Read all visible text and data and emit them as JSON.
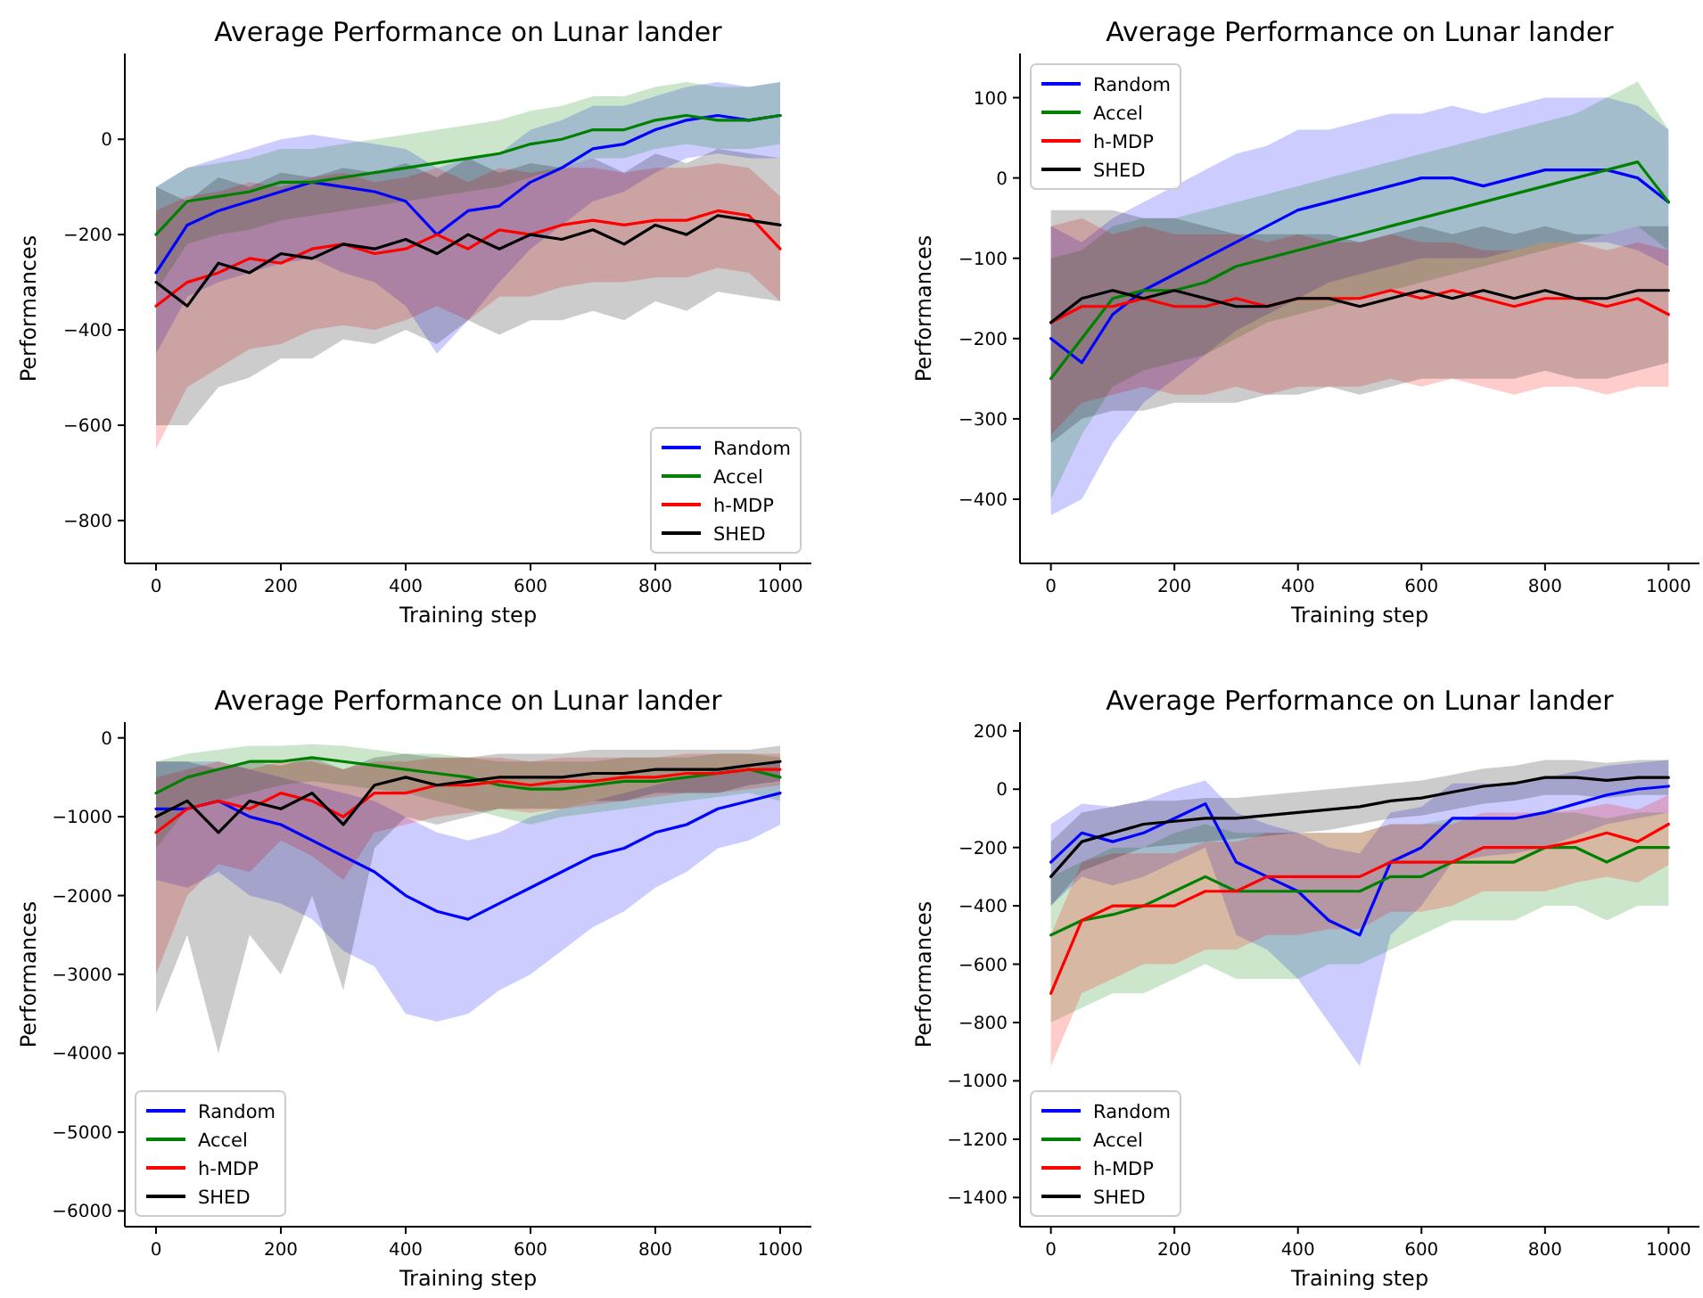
{
  "chart_data": [
    {
      "type": "line",
      "title": "Average Performance on Lunar lander",
      "xlabel": "Training step",
      "ylabel": "Performances",
      "legend": "bottom right",
      "xlim": [
        -50,
        1050
      ],
      "xticks": [
        0,
        200,
        400,
        600,
        800,
        1000
      ],
      "ylim": [
        -890,
        180
      ],
      "yticks": [
        -800,
        -600,
        -400,
        -200,
        0
      ],
      "x": [
        0,
        50,
        100,
        150,
        200,
        250,
        300,
        350,
        400,
        450,
        500,
        550,
        600,
        650,
        700,
        750,
        800,
        850,
        900,
        950,
        1000
      ],
      "series": [
        {
          "name": "Random",
          "color": "#0000ff",
          "values": [
            -280,
            -180,
            -150,
            -130,
            -110,
            -90,
            -100,
            -110,
            -130,
            -200,
            -150,
            -140,
            -90,
            -60,
            -20,
            -10,
            20,
            40,
            50,
            40,
            50
          ],
          "lower": [
            -450,
            -330,
            -300,
            -280,
            -260,
            -250,
            -280,
            -300,
            -350,
            -450,
            -380,
            -300,
            -230,
            -180,
            -130,
            -110,
            -70,
            -40,
            -30,
            -40,
            -40
          ],
          "upper": [
            -100,
            -60,
            -40,
            -20,
            0,
            10,
            0,
            -10,
            -20,
            -60,
            -40,
            -30,
            20,
            40,
            70,
            70,
            90,
            110,
            120,
            110,
            120
          ]
        },
        {
          "name": "Accel",
          "color": "#008000",
          "values": [
            -200,
            -130,
            -120,
            -110,
            -90,
            -90,
            -80,
            -70,
            -60,
            -50,
            -40,
            -30,
            -10,
            0,
            20,
            20,
            40,
            50,
            40,
            40,
            50
          ],
          "lower": [
            -320,
            -220,
            -200,
            -190,
            -170,
            -160,
            -150,
            -140,
            -130,
            -120,
            -110,
            -100,
            -80,
            -60,
            -40,
            -40,
            -20,
            -10,
            -20,
            -20,
            -10
          ],
          "upper": [
            -100,
            -60,
            -50,
            -40,
            -20,
            -20,
            -10,
            0,
            10,
            20,
            30,
            40,
            60,
            70,
            90,
            90,
            110,
            120,
            110,
            110,
            120
          ]
        },
        {
          "name": "h-MDP",
          "color": "#ff0000",
          "values": [
            -350,
            -300,
            -280,
            -250,
            -260,
            -230,
            -220,
            -240,
            -230,
            -200,
            -230,
            -190,
            -200,
            -180,
            -170,
            -180,
            -170,
            -170,
            -150,
            -160,
            -230
          ],
          "lower": [
            -650,
            -520,
            -480,
            -440,
            -430,
            -400,
            -390,
            -400,
            -380,
            -350,
            -380,
            -330,
            -330,
            -310,
            -300,
            -300,
            -290,
            -290,
            -270,
            -280,
            -340
          ],
          "upper": [
            -150,
            -120,
            -110,
            -90,
            -100,
            -80,
            -70,
            -90,
            -80,
            -60,
            -90,
            -60,
            -70,
            -60,
            -60,
            -70,
            -60,
            -60,
            -50,
            -60,
            -120
          ]
        },
        {
          "name": "SHED",
          "color": "#000000",
          "values": [
            -300,
            -350,
            -260,
            -280,
            -240,
            -250,
            -220,
            -230,
            -210,
            -240,
            -200,
            -230,
            -200,
            -210,
            -190,
            -220,
            -180,
            -200,
            -160,
            -170,
            -180
          ],
          "lower": [
            -600,
            -600,
            -520,
            -500,
            -460,
            -460,
            -420,
            -430,
            -400,
            -430,
            -380,
            -410,
            -380,
            -380,
            -360,
            -380,
            -340,
            -360,
            -320,
            -330,
            -340
          ],
          "upper": [
            -100,
            -130,
            -80,
            -100,
            -70,
            -80,
            -60,
            -70,
            -50,
            -80,
            -40,
            -70,
            -50,
            -60,
            -40,
            -70,
            -30,
            -50,
            -20,
            -30,
            -40
          ]
        }
      ]
    },
    {
      "type": "line",
      "title": "Average Performance on Lunar lander",
      "xlabel": "Training step",
      "ylabel": "Performances",
      "legend": "top left",
      "xlim": [
        -50,
        1050
      ],
      "xticks": [
        0,
        200,
        400,
        600,
        800,
        1000
      ],
      "ylim": [
        -480,
        155
      ],
      "yticks": [
        -400,
        -300,
        -200,
        -100,
        0,
        100
      ],
      "x": [
        0,
        50,
        100,
        150,
        200,
        250,
        300,
        350,
        400,
        450,
        500,
        550,
        600,
        650,
        700,
        750,
        800,
        850,
        900,
        950,
        1000
      ],
      "series": [
        {
          "name": "Random",
          "color": "#0000ff",
          "values": [
            -200,
            -230,
            -170,
            -140,
            -120,
            -100,
            -80,
            -60,
            -40,
            -30,
            -20,
            -10,
            0,
            0,
            -10,
            0,
            10,
            10,
            10,
            0,
            -30
          ],
          "lower": [
            -420,
            -400,
            -330,
            -280,
            -250,
            -220,
            -190,
            -170,
            -150,
            -130,
            -120,
            -110,
            -100,
            -100,
            -100,
            -90,
            -80,
            -80,
            -80,
            -90,
            -110
          ],
          "upper": [
            -60,
            -80,
            -50,
            -30,
            -10,
            10,
            30,
            40,
            60,
            60,
            70,
            80,
            80,
            90,
            80,
            90,
            100,
            100,
            100,
            90,
            60
          ]
        },
        {
          "name": "Accel",
          "color": "#008000",
          "values": [
            -250,
            -200,
            -150,
            -140,
            -140,
            -130,
            -110,
            -100,
            -90,
            -80,
            -70,
            -60,
            -50,
            -40,
            -30,
            -20,
            -10,
            0,
            10,
            20,
            -30
          ],
          "lower": [
            -400,
            -320,
            -260,
            -240,
            -230,
            -220,
            -200,
            -180,
            -170,
            -160,
            -150,
            -140,
            -130,
            -120,
            -110,
            -100,
            -90,
            -80,
            -70,
            -60,
            -90
          ],
          "upper": [
            -100,
            -90,
            -60,
            -50,
            -50,
            -40,
            -30,
            -20,
            -10,
            0,
            10,
            20,
            30,
            40,
            50,
            60,
            70,
            80,
            100,
            120,
            60
          ]
        },
        {
          "name": "h-MDP",
          "color": "#ff0000",
          "values": [
            -180,
            -160,
            -160,
            -150,
            -160,
            -160,
            -150,
            -160,
            -150,
            -150,
            -150,
            -140,
            -150,
            -140,
            -150,
            -160,
            -150,
            -150,
            -160,
            -150,
            -170
          ],
          "lower": [
            -320,
            -280,
            -270,
            -260,
            -270,
            -270,
            -260,
            -270,
            -260,
            -260,
            -260,
            -250,
            -260,
            -250,
            -260,
            -270,
            -260,
            -260,
            -270,
            -260,
            -260
          ],
          "upper": [
            -60,
            -50,
            -70,
            -60,
            -70,
            -70,
            -70,
            -80,
            -70,
            -80,
            -80,
            -70,
            -80,
            -80,
            -90,
            -90,
            -80,
            -80,
            -90,
            -80,
            -90
          ]
        },
        {
          "name": "SHED",
          "color": "#000000",
          "values": [
            -180,
            -150,
            -140,
            -150,
            -140,
            -150,
            -160,
            -160,
            -150,
            -150,
            -160,
            -150,
            -140,
            -150,
            -140,
            -150,
            -140,
            -150,
            -150,
            -140,
            -140
          ],
          "lower": [
            -330,
            -300,
            -290,
            -290,
            -280,
            -280,
            -280,
            -270,
            -270,
            -260,
            -270,
            -260,
            -250,
            -250,
            -250,
            -250,
            -240,
            -250,
            -250,
            -240,
            -230
          ],
          "upper": [
            -40,
            -40,
            -40,
            -50,
            -50,
            -60,
            -70,
            -70,
            -70,
            -70,
            -80,
            -70,
            -60,
            -70,
            -60,
            -70,
            -60,
            -70,
            -70,
            -60,
            -60
          ]
        }
      ]
    },
    {
      "type": "line",
      "title": "Average Performance on Lunar lander",
      "xlabel": "Training step",
      "ylabel": "Performances",
      "legend": "bottom left",
      "xlim": [
        -50,
        1050
      ],
      "xticks": [
        0,
        200,
        400,
        600,
        800,
        1000
      ],
      "ylim": [
        -6200,
        200
      ],
      "yticks": [
        -6000,
        -5000,
        -4000,
        -3000,
        -2000,
        -1000,
        0
      ],
      "x": [
        0,
        50,
        100,
        150,
        200,
        250,
        300,
        350,
        400,
        450,
        500,
        550,
        600,
        650,
        700,
        750,
        800,
        850,
        900,
        950,
        1000
      ],
      "series": [
        {
          "name": "Random",
          "color": "#0000ff",
          "values": [
            -900,
            -900,
            -800,
            -1000,
            -1100,
            -1300,
            -1500,
            -1700,
            -2000,
            -2200,
            -2300,
            -2100,
            -1900,
            -1700,
            -1500,
            -1400,
            -1200,
            -1100,
            -900,
            -800,
            -700
          ],
          "lower": [
            -1800,
            -1900,
            -1700,
            -2000,
            -2100,
            -2300,
            -2700,
            -2900,
            -3500,
            -3600,
            -3500,
            -3200,
            -3000,
            -2700,
            -2400,
            -2200,
            -1900,
            -1700,
            -1400,
            -1300,
            -1100
          ],
          "upper": [
            -300,
            -300,
            -300,
            -400,
            -500,
            -600,
            -700,
            -800,
            -1000,
            -1200,
            -1300,
            -1200,
            -1000,
            -900,
            -800,
            -700,
            -600,
            -500,
            -400,
            -400,
            -300
          ]
        },
        {
          "name": "Accel",
          "color": "#008000",
          "values": [
            -700,
            -500,
            -400,
            -300,
            -300,
            -250,
            -300,
            -350,
            -400,
            -450,
            -500,
            -600,
            -650,
            -650,
            -600,
            -550,
            -550,
            -500,
            -450,
            -400,
            -500
          ],
          "lower": [
            -1400,
            -900,
            -800,
            -700,
            -600,
            -550,
            -600,
            -650,
            -700,
            -800,
            -900,
            -1000,
            -1100,
            -1000,
            -950,
            -900,
            -850,
            -800,
            -750,
            -700,
            -800
          ],
          "upper": [
            -300,
            -200,
            -150,
            -100,
            -100,
            -80,
            -100,
            -150,
            -200,
            -200,
            -250,
            -300,
            -300,
            -300,
            -300,
            -250,
            -250,
            -250,
            -200,
            -200,
            -250
          ]
        },
        {
          "name": "h-MDP",
          "color": "#ff0000",
          "values": [
            -1200,
            -900,
            -800,
            -900,
            -700,
            -800,
            -1000,
            -700,
            -700,
            -600,
            -600,
            -550,
            -600,
            -550,
            -550,
            -500,
            -500,
            -450,
            -450,
            -400,
            -400
          ],
          "lower": [
            -3000,
            -2000,
            -1600,
            -1700,
            -1300,
            -1500,
            -1800,
            -1200,
            -1100,
            -1000,
            -950,
            -900,
            -950,
            -900,
            -850,
            -800,
            -750,
            -700,
            -700,
            -650,
            -600
          ],
          "upper": [
            -500,
            -400,
            -300,
            -400,
            -300,
            -300,
            -400,
            -300,
            -300,
            -250,
            -250,
            -250,
            -300,
            -250,
            -250,
            -250,
            -250,
            -200,
            -200,
            -200,
            -200
          ]
        },
        {
          "name": "SHED",
          "color": "#000000",
          "values": [
            -1000,
            -800,
            -1200,
            -800,
            -900,
            -700,
            -1100,
            -600,
            -500,
            -600,
            -550,
            -500,
            -500,
            -500,
            -450,
            -450,
            -400,
            -400,
            -400,
            -350,
            -300
          ],
          "lower": [
            -3500,
            -2500,
            -4000,
            -2500,
            -3000,
            -2000,
            -3200,
            -1400,
            -1000,
            -1100,
            -1000,
            -900,
            -900,
            -900,
            -800,
            -800,
            -700,
            -700,
            -700,
            -600,
            -550
          ],
          "upper": [
            -300,
            -300,
            -400,
            -300,
            -350,
            -250,
            -400,
            -250,
            -200,
            -250,
            -250,
            -200,
            -200,
            -200,
            -150,
            -150,
            -150,
            -150,
            -150,
            -150,
            -100
          ]
        }
      ]
    },
    {
      "type": "line",
      "title": "Average Performance on Lunar lander",
      "xlabel": "Training step",
      "ylabel": "Performances",
      "legend": "bottom left",
      "xlim": [
        -50,
        1050
      ],
      "xticks": [
        0,
        200,
        400,
        600,
        800,
        1000
      ],
      "ylim": [
        -1500,
        230
      ],
      "yticks": [
        -1400,
        -1200,
        -1000,
        -800,
        -600,
        -400,
        -200,
        0,
        200
      ],
      "x": [
        0,
        50,
        100,
        150,
        200,
        250,
        300,
        350,
        400,
        450,
        500,
        550,
        600,
        650,
        700,
        750,
        800,
        850,
        900,
        950,
        1000
      ],
      "series": [
        {
          "name": "Random",
          "color": "#0000ff",
          "values": [
            -250,
            -150,
            -180,
            -150,
            -100,
            -50,
            -250,
            -300,
            -350,
            -450,
            -500,
            -250,
            -200,
            -100,
            -100,
            -100,
            -80,
            -50,
            -20,
            0,
            10
          ],
          "lower": [
            -400,
            -300,
            -330,
            -300,
            -250,
            -200,
            -500,
            -550,
            -650,
            -800,
            -950,
            -500,
            -400,
            -250,
            -230,
            -220,
            -200,
            -160,
            -120,
            -100,
            -80
          ],
          "upper": [
            -120,
            -50,
            -60,
            -40,
            0,
            30,
            -80,
            -120,
            -150,
            -200,
            -220,
            -80,
            -60,
            20,
            20,
            20,
            40,
            60,
            80,
            90,
            100
          ]
        },
        {
          "name": "Accel",
          "color": "#008000",
          "values": [
            -500,
            -450,
            -430,
            -400,
            -350,
            -300,
            -350,
            -350,
            -350,
            -350,
            -350,
            -300,
            -300,
            -250,
            -250,
            -250,
            -200,
            -200,
            -250,
            -200,
            -200
          ],
          "lower": [
            -800,
            -750,
            -700,
            -700,
            -650,
            -600,
            -650,
            -650,
            -650,
            -600,
            -600,
            -550,
            -500,
            -450,
            -450,
            -450,
            -400,
            -400,
            -450,
            -400,
            -400
          ],
          "upper": [
            -300,
            -250,
            -200,
            -200,
            -150,
            -120,
            -150,
            -150,
            -150,
            -150,
            -150,
            -120,
            -120,
            -100,
            -100,
            -100,
            -80,
            -80,
            -100,
            -80,
            -80
          ]
        },
        {
          "name": "h-MDP",
          "color": "#ff0000",
          "values": [
            -700,
            -450,
            -400,
            -400,
            -400,
            -350,
            -350,
            -300,
            -300,
            -300,
            -300,
            -250,
            -250,
            -250,
            -200,
            -200,
            -200,
            -180,
            -150,
            -180,
            -120
          ],
          "lower": [
            -950,
            -700,
            -650,
            -600,
            -600,
            -550,
            -550,
            -500,
            -500,
            -480,
            -480,
            -420,
            -420,
            -400,
            -350,
            -350,
            -350,
            -320,
            -300,
            -320,
            -260
          ],
          "upper": [
            -500,
            -250,
            -220,
            -220,
            -220,
            -180,
            -180,
            -150,
            -150,
            -150,
            -150,
            -120,
            -120,
            -120,
            -80,
            -80,
            -80,
            -70,
            -50,
            -70,
            -20
          ]
        },
        {
          "name": "SHED",
          "color": "#000000",
          "values": [
            -300,
            -180,
            -150,
            -120,
            -110,
            -100,
            -100,
            -90,
            -80,
            -70,
            -60,
            -40,
            -30,
            -10,
            10,
            20,
            40,
            40,
            30,
            40,
            40
          ],
          "lower": [
            -400,
            -280,
            -240,
            -200,
            -190,
            -180,
            -170,
            -160,
            -150,
            -140,
            -120,
            -100,
            -90,
            -70,
            -50,
            -40,
            -20,
            -20,
            -30,
            -20,
            -20
          ],
          "upper": [
            -180,
            -80,
            -60,
            -40,
            -40,
            -30,
            -30,
            -20,
            -10,
            0,
            10,
            20,
            30,
            50,
            70,
            80,
            100,
            100,
            90,
            100,
            100
          ]
        }
      ]
    }
  ]
}
